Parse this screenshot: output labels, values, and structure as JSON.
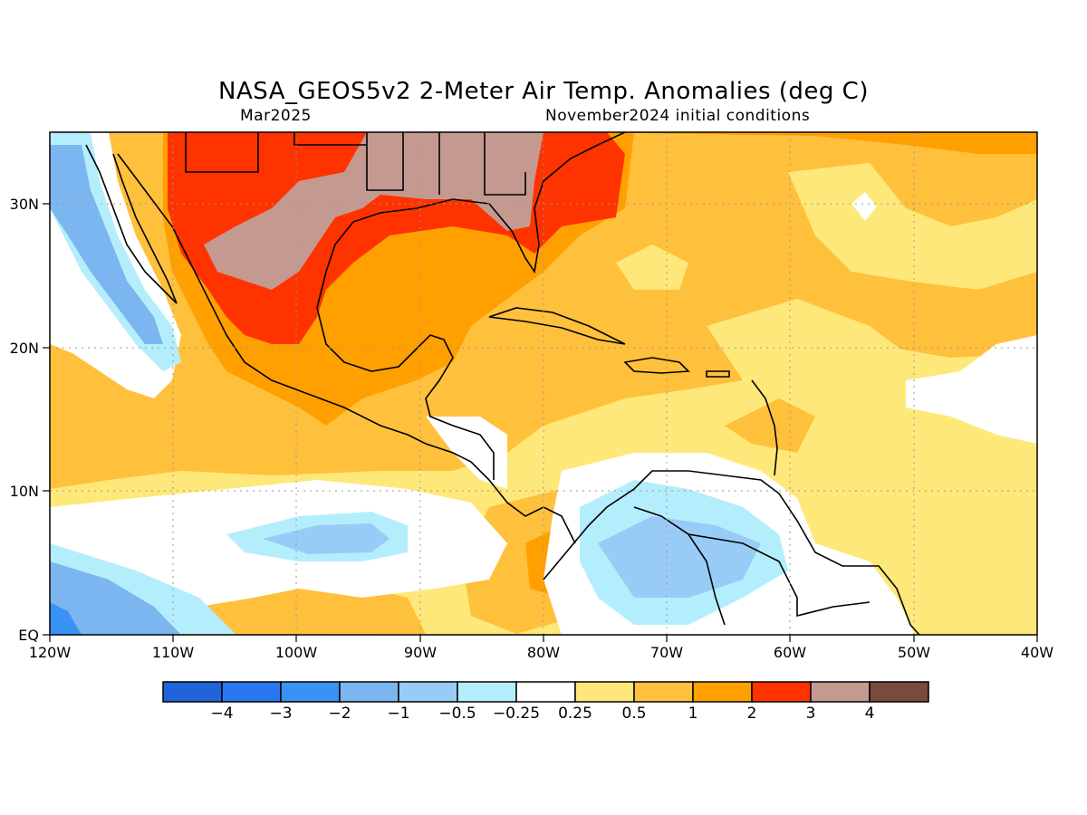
{
  "header": {
    "title": "NASA_GEOS5v2 2-Meter Air Temp. Anomalies (deg C)",
    "period": "Mar2025",
    "init": "November2024 initial conditions"
  },
  "axes": {
    "lon_labels": [
      "120W",
      "110W",
      "100W",
      "90W",
      "80W",
      "70W",
      "60W",
      "50W",
      "40W"
    ],
    "lat_labels": [
      "EQ",
      "10N",
      "20N",
      "30N"
    ]
  },
  "colorbar": {
    "colors": [
      "#1f64d8",
      "#2a78f0",
      "#3a92f5",
      "#7cb6f0",
      "#98ccf6",
      "#b4eefc",
      "#ffffff",
      "#ffe87a",
      "#ffc03c",
      "#ffa000",
      "#ff3300",
      "#c49a90",
      "#7a4a3c"
    ],
    "labels": [
      "−4",
      "−3",
      "−2",
      "−1",
      "−0.5",
      "−0.25",
      "0.25",
      "0.5",
      "1",
      "2",
      "3",
      "4"
    ]
  },
  "legend_levels": {
    "white": "#ffffff",
    "lightblue": "#b4eefc",
    "paleblue": "#98ccf6",
    "midblue": "#7cb6f0",
    "blue": "#3a92f5",
    "yellow": "#ffe87a",
    "lightorange": "#ffc03c",
    "orange": "#ffa000",
    "red": "#ff3300",
    "tan": "#c49a90"
  }
}
